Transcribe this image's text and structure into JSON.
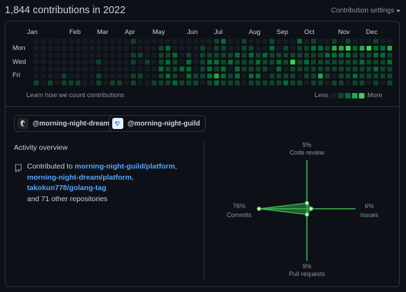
{
  "header": {
    "title": "1,844 contributions in 2022",
    "settings_label": "Contribution settings"
  },
  "graph": {
    "months": [
      "Jan",
      "Feb",
      "Mar",
      "Apr",
      "May",
      "Jun",
      "Jul",
      "Aug",
      "Sep",
      "Oct",
      "Nov",
      "Dec"
    ],
    "days": [
      "Mon",
      "Wed",
      "Fri"
    ],
    "learn_link": "Learn how we count contributions",
    "legend_less": "Less",
    "legend_more": "More",
    "colors": [
      "#161b22",
      "#0e4429",
      "#006d32",
      "#26a641",
      "#39d353"
    ],
    "weeks": [
      [
        0,
        0,
        0,
        0,
        0,
        0,
        1
      ],
      [
        0,
        0,
        0,
        0,
        0,
        0,
        0
      ],
      [
        0,
        0,
        0,
        0,
        0,
        0,
        1
      ],
      [
        0,
        0,
        0,
        0,
        0,
        0,
        0
      ],
      [
        0,
        0,
        0,
        0,
        0,
        1,
        1
      ],
      [
        0,
        0,
        0,
        0,
        0,
        0,
        1
      ],
      [
        0,
        0,
        0,
        0,
        0,
        0,
        1
      ],
      [
        0,
        0,
        0,
        0,
        0,
        0,
        0
      ],
      [
        0,
        0,
        0,
        0,
        0,
        0,
        0
      ],
      [
        0,
        0,
        0,
        1,
        0,
        1,
        1
      ],
      [
        0,
        0,
        0,
        0,
        0,
        0,
        0
      ],
      [
        0,
        0,
        0,
        0,
        0,
        0,
        1
      ],
      [
        0,
        0,
        0,
        0,
        0,
        0,
        1
      ],
      [
        0,
        0,
        0,
        0,
        0,
        0,
        0
      ],
      [
        1,
        0,
        1,
        1,
        0,
        1,
        1
      ],
      [
        0,
        0,
        1,
        0,
        0,
        1,
        0
      ],
      [
        0,
        0,
        0,
        1,
        0,
        0,
        0
      ],
      [
        0,
        0,
        0,
        0,
        0,
        0,
        1
      ],
      [
        0,
        1,
        1,
        1,
        2,
        1,
        1
      ],
      [
        0,
        2,
        1,
        2,
        1,
        2,
        1
      ],
      [
        0,
        0,
        2,
        1,
        1,
        1,
        2
      ],
      [
        0,
        0,
        0,
        0,
        2,
        0,
        1
      ],
      [
        0,
        0,
        1,
        2,
        2,
        2,
        1
      ],
      [
        0,
        0,
        0,
        0,
        0,
        1,
        1
      ],
      [
        0,
        1,
        1,
        1,
        1,
        1,
        0
      ],
      [
        0,
        0,
        1,
        2,
        2,
        2,
        1
      ],
      [
        1,
        1,
        1,
        2,
        1,
        3,
        2
      ],
      [
        2,
        1,
        1,
        1,
        2,
        2,
        1
      ],
      [
        0,
        0,
        1,
        2,
        0,
        1,
        1
      ],
      [
        0,
        0,
        2,
        1,
        2,
        2,
        1
      ],
      [
        1,
        1,
        1,
        1,
        1,
        0,
        0
      ],
      [
        0,
        1,
        2,
        1,
        1,
        2,
        1
      ],
      [
        0,
        0,
        1,
        2,
        1,
        2,
        1
      ],
      [
        0,
        0,
        2,
        1,
        1,
        0,
        1
      ],
      [
        1,
        2,
        1,
        1,
        0,
        1,
        1
      ],
      [
        0,
        0,
        1,
        2,
        2,
        1,
        1
      ],
      [
        0,
        1,
        1,
        1,
        0,
        1,
        2
      ],
      [
        0,
        0,
        1,
        4,
        1,
        1,
        1
      ],
      [
        2,
        1,
        1,
        1,
        1,
        0,
        1
      ],
      [
        0,
        1,
        1,
        2,
        1,
        1,
        0
      ],
      [
        1,
        2,
        1,
        1,
        1,
        1,
        1
      ],
      [
        0,
        2,
        1,
        1,
        1,
        3,
        1
      ],
      [
        0,
        1,
        2,
        1,
        1,
        1,
        0
      ],
      [
        1,
        3,
        2,
        1,
        1,
        0,
        1
      ],
      [
        0,
        3,
        2,
        1,
        1,
        1,
        1
      ],
      [
        1,
        4,
        2,
        1,
        1,
        1,
        0
      ],
      [
        0,
        2,
        1,
        1,
        1,
        2,
        1
      ],
      [
        0,
        3,
        1,
        2,
        1,
        1,
        1
      ],
      [
        0,
        4,
        1,
        1,
        1,
        1,
        0
      ],
      [
        1,
        2,
        2,
        1,
        2,
        1,
        1
      ],
      [
        0,
        2,
        2,
        1,
        1,
        1,
        0
      ],
      [
        0,
        3,
        1,
        2,
        1,
        1,
        1
      ]
    ]
  },
  "orgs": [
    {
      "label": "@morning-night-dream",
      "avatar_icon": "dream-avatar-icon"
    },
    {
      "label": "@morning-night-guild",
      "avatar_icon": "guild-avatar-icon"
    }
  ],
  "activity": {
    "title": "Activity overview",
    "contributed_prefix": "Contributed to ",
    "repos": [
      "morning-night-guild/platform",
      "morning-night-dream/platform",
      "takokun778/golang-tag"
    ],
    "other_text": "and 71 other repositories",
    "repo_icon": "repo-icon"
  },
  "radar": {
    "accent": "#3fb950",
    "axes": [
      {
        "name": "Code review",
        "percent": "9%",
        "value": 9
      },
      {
        "name": "Issues",
        "percent": "6%",
        "value": 6
      },
      {
        "name": "Pull requests",
        "percent": "9%",
        "value": 9
      },
      {
        "name": "Commits",
        "percent": "76%",
        "value": 76
      }
    ]
  }
}
